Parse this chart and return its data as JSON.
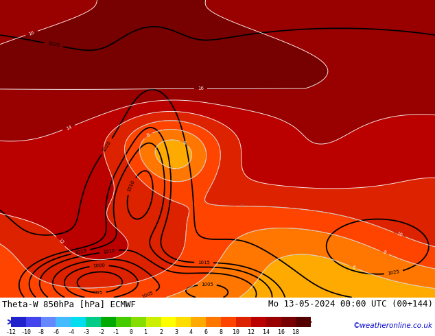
{
  "title_left": "Theta-W 850hPa [hPa] ECMWF",
  "title_right": "Mo 13-05-2024 00:00 UTC (00+144)",
  "credit": "©weatheronline.co.uk",
  "colorbar_ticks": [
    -12,
    -10,
    -8,
    -6,
    -4,
    -3,
    -2,
    -1,
    0,
    1,
    2,
    3,
    4,
    6,
    8,
    10,
    12,
    14,
    16,
    18
  ],
  "colorbar_colors": [
    "#2222cc",
    "#4444ee",
    "#6688ff",
    "#44bbff",
    "#00ddee",
    "#00cc88",
    "#00aa00",
    "#44cc00",
    "#88dd00",
    "#ccee00",
    "#ffff00",
    "#ffdd00",
    "#ffaa00",
    "#ff7700",
    "#ff4400",
    "#dd2200",
    "#bb0000",
    "#990000",
    "#770000",
    "#550000"
  ],
  "bg_color": "#ffffff",
  "title_fontsize": 9,
  "credit_color": "#0000cc",
  "figsize": [
    6.34,
    4.9
  ],
  "dpi": 100
}
